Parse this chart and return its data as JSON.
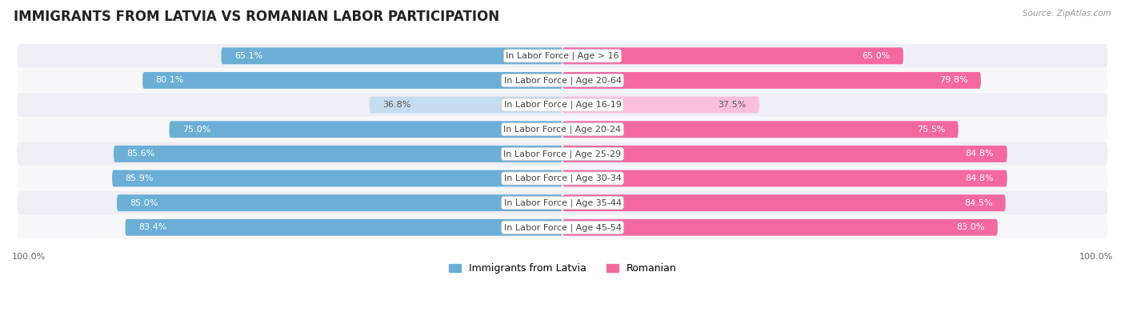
{
  "title": "IMMIGRANTS FROM LATVIA VS ROMANIAN LABOR PARTICIPATION",
  "source": "Source: ZipAtlas.com",
  "categories": [
    "In Labor Force | Age > 16",
    "In Labor Force | Age 20-64",
    "In Labor Force | Age 16-19",
    "In Labor Force | Age 20-24",
    "In Labor Force | Age 25-29",
    "In Labor Force | Age 30-34",
    "In Labor Force | Age 35-44",
    "In Labor Force | Age 45-54"
  ],
  "latvia_values": [
    65.1,
    80.1,
    36.8,
    75.0,
    85.6,
    85.9,
    85.0,
    83.4
  ],
  "romanian_values": [
    65.0,
    79.8,
    37.5,
    75.5,
    84.8,
    84.8,
    84.5,
    83.0
  ],
  "latvia_color": "#6BAED6",
  "romanian_color": "#F468A0",
  "latvia_color_light": "#C6DCEF",
  "romanian_color_light": "#FAC0D8",
  "bg_row_even": "#EEEEF4",
  "bg_row_odd": "#F7F7FA",
  "legend_latvia": "Immigrants from Latvia",
  "legend_romanian": "Romanian",
  "axis_label": "100.0%",
  "title_fontsize": 12,
  "bar_value_fontsize": 8,
  "category_fontsize": 8,
  "max_value": 100.0
}
